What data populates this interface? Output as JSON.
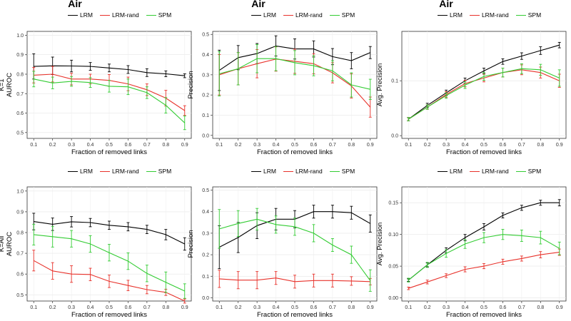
{
  "chart_data": [
    {
      "type": "line",
      "title": "Air",
      "ylabel": "K=1\nAUROC",
      "xlabel": "Fraction of removed links",
      "x": [
        0.1,
        0.2,
        0.3,
        0.4,
        0.5,
        0.6,
        0.7,
        0.8,
        0.9
      ],
      "ylim": [
        0.47,
        1.02
      ],
      "yticks": [
        "0.5",
        "0.6",
        "0.7",
        "0.8",
        "0.9",
        "1.0"
      ],
      "ytick_values": [
        0.5,
        0.6,
        0.7,
        0.8,
        0.9,
        1.0
      ],
      "series": [
        {
          "name": "LRM",
          "color": "#000000",
          "values": [
            0.84,
            0.843,
            0.842,
            0.84,
            0.832,
            0.824,
            0.808,
            0.802,
            0.792
          ],
          "err": [
            0.065,
            0.045,
            0.03,
            0.02,
            0.02,
            0.02,
            0.02,
            0.015,
            0.01
          ]
        },
        {
          "name": "LRM-rand",
          "color": "#e8322b",
          "values": [
            0.795,
            0.8,
            0.775,
            0.775,
            0.768,
            0.75,
            0.72,
            0.677,
            0.613
          ],
          "err": [
            0.04,
            0.04,
            0.03,
            0.025,
            0.03,
            0.035,
            0.03,
            0.04,
            0.025
          ]
        },
        {
          "name": "SPM",
          "color": "#33cc33",
          "values": [
            0.775,
            0.755,
            0.763,
            0.757,
            0.738,
            0.735,
            0.705,
            0.64,
            0.55
          ],
          "err": [
            0.04,
            0.03,
            0.025,
            0.025,
            0.03,
            0.04,
            0.03,
            0.04,
            0.035
          ]
        }
      ]
    },
    {
      "type": "line",
      "title": "Air",
      "ylabel": "Precision",
      "xlabel": "Fraction of removed links",
      "x": [
        0.1,
        0.2,
        0.3,
        0.4,
        0.5,
        0.6,
        0.7,
        0.8,
        0.9
      ],
      "ylim": [
        -0.015,
        0.515
      ],
      "yticks": [
        "0.0",
        "0.1",
        "0.2",
        "0.3",
        "0.4",
        "0.5"
      ],
      "ytick_values": [
        0.0,
        0.1,
        0.2,
        0.3,
        0.4,
        0.5
      ],
      "series": [
        {
          "name": "LRM",
          "color": "#000000",
          "values": [
            0.322,
            0.385,
            0.405,
            0.443,
            0.428,
            0.428,
            0.39,
            0.37,
            0.41
          ],
          "err": [
            0.1,
            0.06,
            0.05,
            0.05,
            0.05,
            0.04,
            0.04,
            0.04,
            0.03
          ]
        },
        {
          "name": "LRM-rand",
          "color": "#e8322b",
          "values": [
            0.3,
            0.33,
            0.355,
            0.378,
            0.367,
            0.355,
            0.31,
            0.245,
            0.14
          ],
          "err": [
            0.1,
            0.08,
            0.07,
            0.06,
            0.06,
            0.05,
            0.05,
            0.06,
            0.05
          ]
        },
        {
          "name": "SPM",
          "color": "#33cc33",
          "values": [
            0.305,
            0.33,
            0.38,
            0.38,
            0.36,
            0.345,
            0.32,
            0.25,
            0.228
          ],
          "err": [
            0.11,
            0.08,
            0.07,
            0.06,
            0.06,
            0.05,
            0.05,
            0.06,
            0.05
          ]
        }
      ]
    },
    {
      "type": "line",
      "title": "Air",
      "ylabel": "Avg. Precision",
      "xlabel": "Fraction of removed links",
      "x": [
        0.1,
        0.2,
        0.3,
        0.4,
        0.5,
        0.6,
        0.7,
        0.8,
        0.9
      ],
      "ylim": [
        -0.005,
        0.19
      ],
      "yticks": [
        "0.0",
        "0.1"
      ],
      "ytick_values": [
        0.0,
        0.1
      ],
      "series": [
        {
          "name": "LRM",
          "color": "#000000",
          "values": [
            0.03,
            0.055,
            0.078,
            0.1,
            0.118,
            0.135,
            0.145,
            0.155,
            0.165
          ],
          "err": [
            0.003,
            0.004,
            0.005,
            0.005,
            0.005,
            0.005,
            0.006,
            0.007,
            0.005
          ]
        },
        {
          "name": "LRM-rand",
          "color": "#e8322b",
          "values": [
            0.03,
            0.052,
            0.075,
            0.095,
            0.105,
            0.115,
            0.12,
            0.115,
            0.1
          ],
          "err": [
            0.003,
            0.004,
            0.005,
            0.006,
            0.007,
            0.008,
            0.009,
            0.01,
            0.012
          ]
        },
        {
          "name": "SPM",
          "color": "#33cc33",
          "values": [
            0.03,
            0.052,
            0.073,
            0.092,
            0.108,
            0.115,
            0.122,
            0.12,
            0.105
          ],
          "err": [
            0.003,
            0.004,
            0.005,
            0.006,
            0.007,
            0.008,
            0.009,
            0.01,
            0.015
          ]
        }
      ]
    },
    {
      "type": "line",
      "title": "",
      "ylabel": "K=All\nAUROC",
      "xlabel": "Fraction of removed links",
      "x": [
        0.1,
        0.2,
        0.3,
        0.4,
        0.5,
        0.6,
        0.7,
        0.8,
        0.9
      ],
      "ylim": [
        0.47,
        1.02
      ],
      "yticks": [
        "0.5",
        "0.6",
        "0.7",
        "0.8",
        "0.9",
        "1.0"
      ],
      "ytick_values": [
        0.5,
        0.6,
        0.7,
        0.8,
        0.9,
        1.0
      ],
      "series": [
        {
          "name": "LRM",
          "color": "#000000",
          "values": [
            0.853,
            0.84,
            0.852,
            0.848,
            0.835,
            0.828,
            0.815,
            0.79,
            0.745
          ],
          "err": [
            0.04,
            0.03,
            0.025,
            0.02,
            0.02,
            0.02,
            0.02,
            0.025,
            0.03
          ]
        },
        {
          "name": "LRM-rand",
          "color": "#e8322b",
          "values": [
            0.665,
            0.615,
            0.6,
            0.598,
            0.565,
            0.545,
            0.525,
            0.512,
            0.47
          ],
          "err": [
            0.05,
            0.04,
            0.04,
            0.03,
            0.03,
            0.025,
            0.02,
            0.015,
            0.01
          ]
        },
        {
          "name": "SPM",
          "color": "#33cc33",
          "values": [
            0.79,
            0.78,
            0.77,
            0.745,
            0.703,
            0.662,
            0.603,
            0.56,
            0.518
          ],
          "err": [
            0.05,
            0.05,
            0.04,
            0.04,
            0.04,
            0.04,
            0.04,
            0.05,
            0.035
          ]
        }
      ]
    },
    {
      "type": "line",
      "title": "",
      "ylabel": "Precision",
      "xlabel": "Fraction of removed links",
      "x": [
        0.1,
        0.2,
        0.3,
        0.4,
        0.5,
        0.6,
        0.7,
        0.8,
        0.9
      ],
      "ylim": [
        -0.015,
        0.515
      ],
      "yticks": [
        "0.0",
        "0.1",
        "0.2",
        "0.3",
        "0.4",
        "0.5"
      ],
      "ytick_values": [
        0.0,
        0.1,
        0.2,
        0.3,
        0.4,
        0.5
      ],
      "series": [
        {
          "name": "LRM",
          "color": "#000000",
          "values": [
            0.235,
            0.28,
            0.335,
            0.365,
            0.365,
            0.4,
            0.4,
            0.395,
            0.345
          ],
          "err": [
            0.1,
            0.07,
            0.06,
            0.05,
            0.04,
            0.03,
            0.03,
            0.03,
            0.04
          ]
        },
        {
          "name": "LRM-rand",
          "color": "#e8322b",
          "values": [
            0.088,
            0.082,
            0.082,
            0.092,
            0.075,
            0.08,
            0.08,
            0.078,
            0.075
          ],
          "err": [
            0.04,
            0.04,
            0.04,
            0.03,
            0.03,
            0.03,
            0.03,
            0.02,
            0.015
          ]
        },
        {
          "name": "SPM",
          "color": "#33cc33",
          "values": [
            0.32,
            0.345,
            0.365,
            0.34,
            0.33,
            0.3,
            0.245,
            0.2,
            0.08
          ],
          "err": [
            0.09,
            0.06,
            0.05,
            0.04,
            0.04,
            0.04,
            0.03,
            0.04,
            0.05
          ]
        }
      ]
    },
    {
      "type": "line",
      "title": "",
      "ylabel": "Avg. Precision",
      "xlabel": "Fraction of removed links",
      "x": [
        0.1,
        0.2,
        0.3,
        0.4,
        0.5,
        0.6,
        0.7,
        0.8,
        0.9
      ],
      "ylim": [
        -0.005,
        0.175
      ],
      "yticks": [
        "0.00",
        "0.05",
        "0.10",
        "0.15"
      ],
      "ytick_values": [
        0.0,
        0.05,
        0.1,
        0.15
      ],
      "series": [
        {
          "name": "LRM",
          "color": "#000000",
          "values": [
            0.028,
            0.052,
            0.075,
            0.095,
            0.112,
            0.13,
            0.142,
            0.15,
            0.15
          ],
          "err": [
            0.002,
            0.003,
            0.004,
            0.005,
            0.005,
            0.004,
            0.004,
            0.004,
            0.005
          ]
        },
        {
          "name": "LRM-rand",
          "color": "#e8322b",
          "values": [
            0.015,
            0.025,
            0.035,
            0.045,
            0.05,
            0.057,
            0.062,
            0.068,
            0.072
          ],
          "err": [
            0.002,
            0.003,
            0.003,
            0.004,
            0.004,
            0.004,
            0.004,
            0.005,
            0.005
          ]
        },
        {
          "name": "SPM",
          "color": "#33cc33",
          "values": [
            0.028,
            0.052,
            0.07,
            0.085,
            0.095,
            0.1,
            0.098,
            0.095,
            0.078
          ],
          "err": [
            0.003,
            0.004,
            0.006,
            0.007,
            0.008,
            0.008,
            0.009,
            0.01,
            0.01
          ]
        }
      ]
    }
  ]
}
